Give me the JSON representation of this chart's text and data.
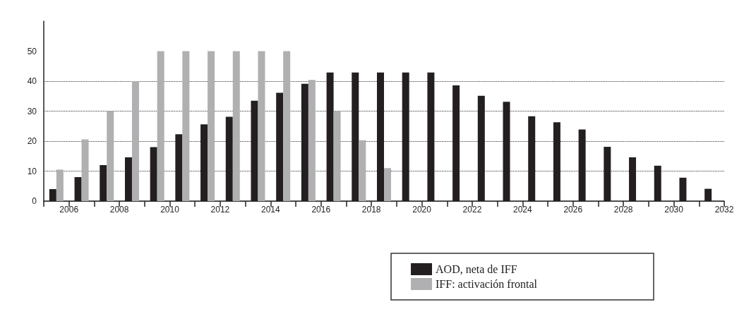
{
  "chart_data": {
    "type": "bar",
    "x": [
      2005.5,
      2006.5,
      2007.5,
      2008.5,
      2009.5,
      2010.5,
      2011.5,
      2012.5,
      2013.5,
      2014.5,
      2015.5,
      2016.5,
      2017.5,
      2018.5,
      2019.5,
      2020.5,
      2021.5,
      2022.5,
      2023.5,
      2024.5,
      2025.5,
      2026.5,
      2027.5,
      2028.5,
      2029.5,
      2030.5,
      2031.5
    ],
    "series": [
      {
        "name": "AOD, neta de IFF",
        "color": "#231f20",
        "values": [
          4,
          8,
          12,
          14.6,
          18,
          22.3,
          25.6,
          28.1,
          33.5,
          36.1,
          39.1,
          42.9,
          42.9,
          42.9,
          42.9,
          42.9,
          38.6,
          35.1,
          33.1,
          28.3,
          26.3,
          23.9,
          18.1,
          14.6,
          11.8,
          7.8,
          4.1
        ]
      },
      {
        "name": "IFF: activación frontal",
        "color": "#b0b0b2",
        "values": [
          10.5,
          20.6,
          30,
          40,
          50,
          50,
          50,
          50,
          50,
          50,
          40.4,
          30,
          20.3,
          11,
          null,
          null,
          null,
          null,
          null,
          null,
          null,
          null,
          null,
          null,
          null,
          null,
          null
        ]
      }
    ],
    "xlim": [
      2005,
      2032
    ],
    "xticks": [
      {
        "value": 2005,
        "label": null
      },
      2006,
      {
        "value": 2007,
        "label": null
      },
      2008,
      {
        "value": 2009,
        "label": null
      },
      2010,
      {
        "value": 2011,
        "label": null
      },
      2012,
      {
        "value": 2013,
        "label": null
      },
      2014,
      {
        "value": 2015,
        "label": null
      },
      2016,
      {
        "value": 2017,
        "label": null
      },
      2018,
      {
        "value": 2019,
        "label": null
      },
      2020,
      {
        "value": 2021,
        "label": null
      },
      2022,
      {
        "value": 2023,
        "label": null
      },
      2024,
      {
        "value": 2025,
        "label": null
      },
      2026,
      {
        "value": 2027,
        "label": null
      },
      2028,
      {
        "value": 2029,
        "label": null
      },
      2030,
      {
        "value": 2031,
        "label": null
      },
      2032
    ],
    "ylim": [
      0,
      60
    ],
    "yticks": [
      0,
      10,
      20,
      30,
      40,
      50
    ],
    "grid": "y",
    "legend": "bottom right"
  }
}
